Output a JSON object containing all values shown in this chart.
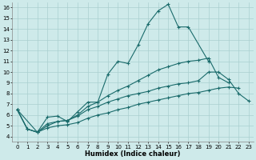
{
  "xlabel": "Humidex (Indice chaleur)",
  "bg_color": "#ceeaea",
  "line_color": "#1a6b6b",
  "grid_color": "#aacfcf",
  "xlim": [
    -0.5,
    23.5
  ],
  "ylim": [
    3.5,
    16.5
  ],
  "xticks": [
    0,
    1,
    2,
    3,
    4,
    5,
    6,
    7,
    8,
    9,
    10,
    11,
    12,
    13,
    14,
    15,
    16,
    17,
    18,
    19,
    20,
    21,
    22,
    23
  ],
  "yticks": [
    4,
    5,
    6,
    7,
    8,
    9,
    10,
    11,
    12,
    13,
    14,
    15,
    16
  ],
  "series": [
    {
      "x": [
        0,
        1,
        2,
        3,
        4,
        5,
        6,
        7,
        8,
        9,
        10,
        11,
        12,
        13,
        14,
        15,
        16,
        17,
        19
      ],
      "y": [
        6.5,
        4.7,
        4.4,
        5.8,
        5.9,
        5.4,
        6.3,
        7.2,
        7.2,
        9.8,
        11.0,
        10.8,
        12.5,
        14.5,
        15.7,
        16.3,
        14.2,
        14.2,
        11.0
      ]
    },
    {
      "x": [
        0,
        1,
        2,
        3,
        4,
        5,
        6,
        7,
        8,
        9,
        10,
        11,
        12,
        13,
        14,
        15,
        16,
        17,
        18,
        19,
        20,
        21
      ],
      "y": [
        6.5,
        4.7,
        4.4,
        5.2,
        5.4,
        5.5,
        6.0,
        6.8,
        7.2,
        7.8,
        8.3,
        8.7,
        9.2,
        9.7,
        10.2,
        10.5,
        10.8,
        11.0,
        11.1,
        11.3,
        9.5,
        9.0
      ]
    },
    {
      "x": [
        0,
        2,
        3,
        4,
        5,
        6,
        7,
        8,
        9,
        10,
        11,
        12,
        13,
        14,
        15,
        16,
        17,
        18,
        19,
        20,
        21,
        22,
        23
      ],
      "y": [
        6.5,
        4.4,
        4.8,
        5.0,
        5.1,
        5.3,
        5.7,
        6.0,
        6.2,
        6.5,
        6.7,
        7.0,
        7.2,
        7.4,
        7.6,
        7.8,
        8.0,
        8.1,
        8.3,
        8.5,
        8.6,
        8.5,
        null
      ]
    },
    {
      "x": [
        0,
        1,
        2,
        3,
        4,
        5,
        6,
        7,
        8,
        9,
        10,
        11,
        12,
        13,
        14,
        15,
        16,
        17,
        18,
        19,
        20,
        21,
        22,
        23
      ],
      "y": [
        6.5,
        4.7,
        4.4,
        5.0,
        5.4,
        5.5,
        5.9,
        6.5,
        6.8,
        7.2,
        7.5,
        7.8,
        8.0,
        8.2,
        8.5,
        8.7,
        8.9,
        9.0,
        9.2,
        10.0,
        10.0,
        9.3,
        8.0,
        7.3
      ]
    }
  ]
}
